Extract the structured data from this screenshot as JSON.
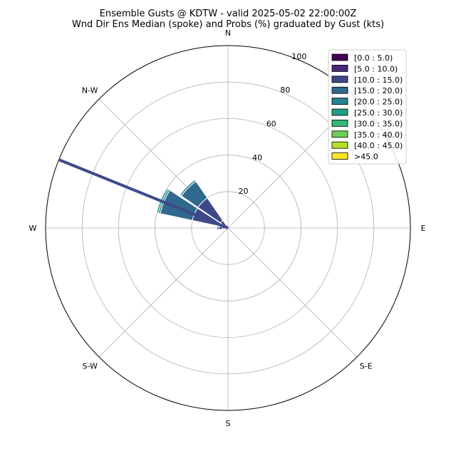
{
  "chart_data": {
    "type": "windrose",
    "title_line1": "Ensemble Gusts @ KDTW - valid 2025-05-02 22:00:00Z",
    "title_line2": "Wnd Dir Ens Median (spoke) and Probs (%) graduated by Gust (kts)",
    "direction_labels": [
      "N",
      "N-W",
      "W",
      "S-W",
      "S",
      "S-E",
      "E"
    ],
    "radial_ticks": [
      20,
      40,
      60,
      80,
      100
    ],
    "radial_max": 100,
    "legend_placement": "top-right",
    "bins": [
      {
        "label": "[0.0 : 5.0)",
        "color": "#440154"
      },
      {
        "label": "[5.0 : 10.0)",
        "color": "#482878"
      },
      {
        "label": "[10.0 : 15.0)",
        "color": "#3e4989"
      },
      {
        "label": "[15.0 : 20.0)",
        "color": "#31688e"
      },
      {
        "label": "[20.0 : 25.0)",
        "color": "#26828e"
      },
      {
        "label": "[25.0 : 30.0)",
        "color": "#1f9e89"
      },
      {
        "label": "[30.0 : 35.0)",
        "color": "#35b779"
      },
      {
        "label": "[35.0 : 40.0)",
        "color": "#6ece58"
      },
      {
        "label": "[40.0 : 45.0)",
        "color": "#b5de2b"
      },
      {
        "label": ">45.0",
        "color": "#fde725"
      }
    ],
    "median_spoke": {
      "direction_deg": 292,
      "length": 100,
      "color": "#3e4989"
    },
    "sectors": [
      {
        "direction_deg": 270,
        "cumulative": [
          1,
          3,
          5,
          6
        ]
      },
      {
        "direction_deg": 292.5,
        "cumulative": [
          2,
          5,
          20,
          38,
          39,
          40
        ]
      },
      {
        "direction_deg": 315,
        "cumulative": [
          1,
          5,
          20,
          31,
          32
        ]
      },
      {
        "direction_deg": 337.5,
        "cumulative": [
          1,
          2
        ]
      }
    ]
  }
}
